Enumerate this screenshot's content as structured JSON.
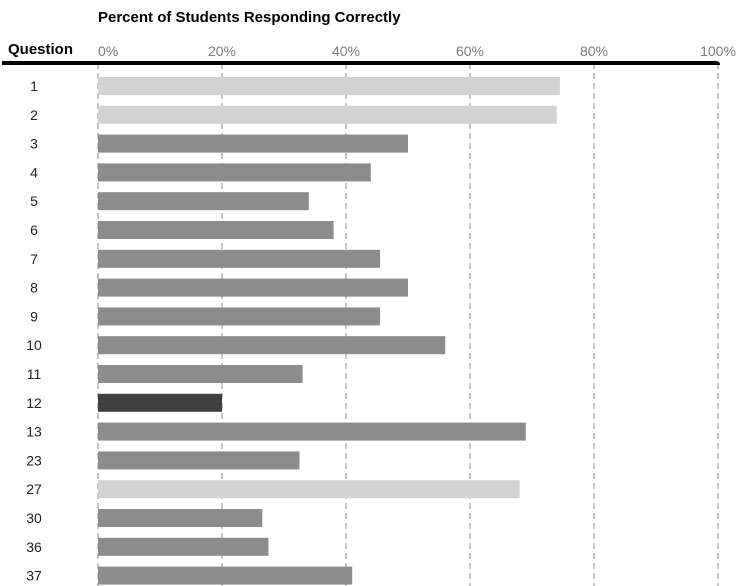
{
  "chart_data": {
    "type": "bar",
    "orientation": "horizontal",
    "title": "Percent of Students Responding Correctly",
    "category_header": "Question",
    "categories": [
      "1",
      "2",
      "3",
      "4",
      "5",
      "6",
      "7",
      "8",
      "9",
      "10",
      "11",
      "12",
      "13",
      "23",
      "27",
      "30",
      "36",
      "37"
    ],
    "values": [
      74.5,
      74,
      50,
      44,
      34,
      38,
      45.5,
      50,
      45.5,
      56,
      33,
      20,
      69,
      32.5,
      68,
      26.5,
      27.5,
      41
    ],
    "shades": [
      "light",
      "light",
      "medium",
      "medium",
      "medium",
      "medium",
      "medium",
      "medium",
      "medium",
      "medium",
      "medium",
      "dark",
      "medium",
      "medium",
      "light",
      "medium",
      "medium",
      "medium"
    ],
    "xlim": [
      0,
      100
    ],
    "x_ticks": [
      "0%",
      "20%",
      "40%",
      "60%",
      "80%",
      "100%"
    ],
    "grid": "vertical dashed",
    "colors": {
      "light": "#d3d3d3",
      "medium": "#8c8c8c",
      "dark": "#3f3f3f",
      "grid": "#8a8a8a",
      "axis": "#000000"
    }
  }
}
